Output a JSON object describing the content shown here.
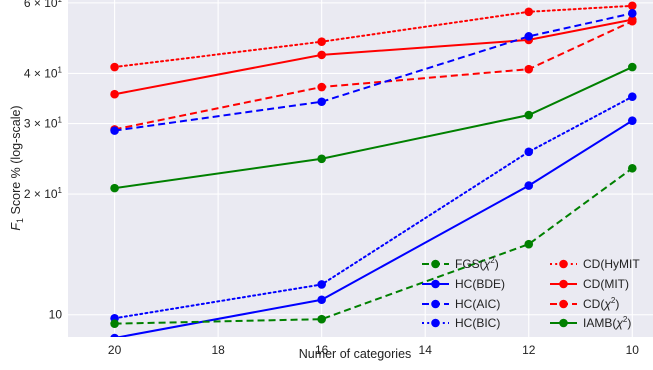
{
  "chart_data": {
    "type": "line",
    "xlabel": "Numer of categories",
    "ylabel": {
      "prefix": "F",
      "sub": "1",
      "rest": " Score % (log-scale)"
    },
    "x_reversed": true,
    "y_scale": "log",
    "xlim": [
      20.9,
      9.6
    ],
    "ylim": [
      8.8,
      61
    ],
    "x_ticks": [
      20,
      18,
      16,
      14,
      12,
      10
    ],
    "y_ticks": [
      {
        "value": 10,
        "label": "10"
      },
      {
        "value": 20,
        "base": "2 × 10",
        "exp": "1"
      },
      {
        "value": 30,
        "base": "3 × 10",
        "exp": "1"
      },
      {
        "value": 40,
        "base": "4 × 10",
        "exp": "1"
      },
      {
        "value": 60,
        "base": "6 × 10",
        "exp": "1"
      }
    ],
    "grid": true,
    "x": [
      20,
      16,
      12,
      10
    ],
    "series": [
      {
        "name": "CD(HyMIT)",
        "color": "#ff0000",
        "dash": "dotted",
        "values": [
          41.5,
          48,
          57,
          59
        ]
      },
      {
        "name": "CD(MIT)",
        "color": "#ff0000",
        "dash": "solid",
        "values": [
          35.5,
          44.5,
          48.5,
          54.5
        ]
      },
      {
        "name": "CD(χ2)",
        "color": "#ff0000",
        "dash": "dashed",
        "values": [
          29,
          37,
          41,
          54
        ]
      },
      {
        "name": "IAMB(χ2)",
        "color": "#008000",
        "dash": "solid",
        "values": [
          20.7,
          24.5,
          31.5,
          41.5
        ]
      },
      {
        "name": "HC(BDE)",
        "color": "#0000ff",
        "dash": "solid",
        "values": [
          8.75,
          10.9,
          21,
          30.5
        ]
      },
      {
        "name": "HC(AIC)",
        "color": "#0000ff",
        "dash": "dashed",
        "values": [
          28.8,
          34,
          49.5,
          56.5
        ]
      },
      {
        "name": "HC(BIC)",
        "color": "#0000ff",
        "dash": "dotted",
        "values": [
          9.8,
          11.9,
          25.5,
          35
        ]
      },
      {
        "name": "FGS(χ2)",
        "color": "#008000",
        "dash": "dashed",
        "values": [
          9.5,
          9.75,
          15,
          23.2
        ]
      }
    ],
    "legend": {
      "placement": "lower-right",
      "col1": [
        {
          "series": 7,
          "label_main": "FGS(",
          "label_sym": "χ",
          "label_sup": "2",
          "label_end": ")"
        },
        {
          "series": 4,
          "label_main": "HC(BDE)"
        },
        {
          "series": 5,
          "label_main": "HC(AIC)"
        },
        {
          "series": 6,
          "label_main": "HC(BIC)"
        }
      ],
      "col2": [
        {
          "series": 0,
          "label_main": "CD(HyMIT"
        },
        {
          "series": 1,
          "label_main": "CD(MIT)"
        },
        {
          "series": 2,
          "label_main": "CD(",
          "label_sym": "χ",
          "label_sup": "2",
          "label_end": ")"
        },
        {
          "series": 3,
          "label_main": "IAMB(",
          "label_sym": "χ",
          "label_sup": "2",
          "label_end": ")"
        }
      ]
    }
  }
}
